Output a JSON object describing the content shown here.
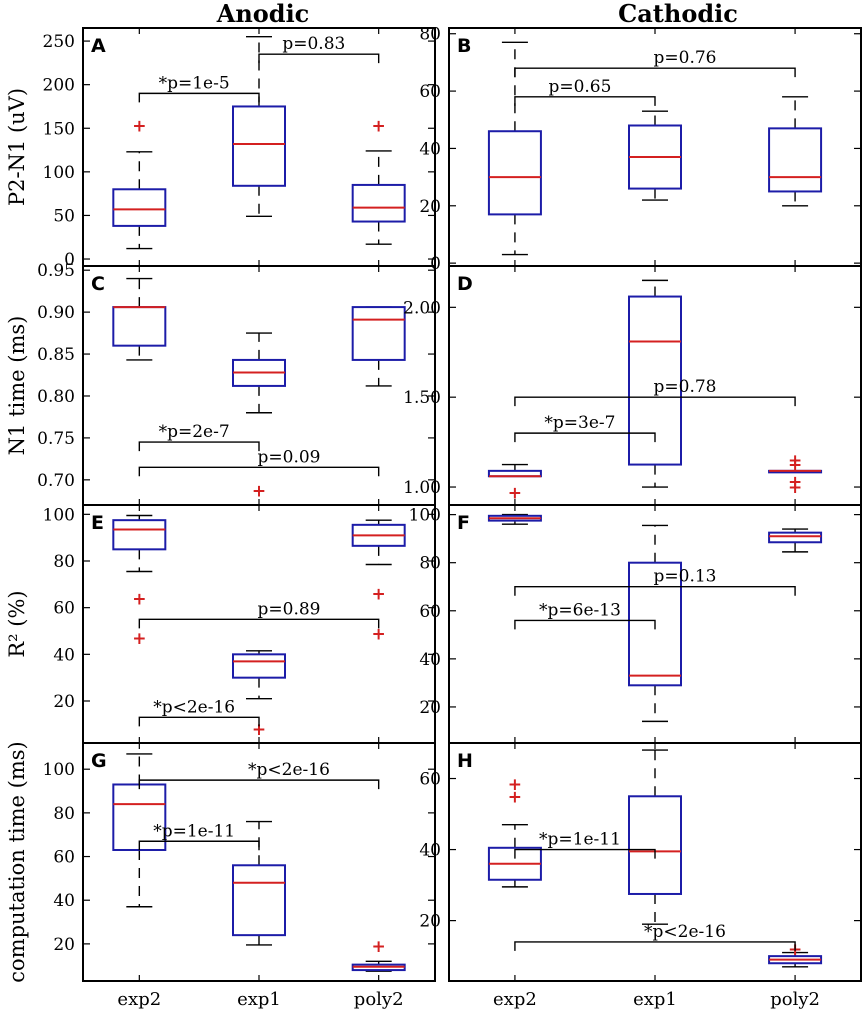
{
  "column_titles": [
    "Anodic",
    "Cathodic"
  ],
  "categories": [
    "exp2",
    "exp1",
    "poly2"
  ],
  "chart_data": [
    {
      "type": "box",
      "panel": "A",
      "column": "Anodic",
      "ylabel": "P2-N1 (uV)",
      "ylim": [
        -8,
        265
      ],
      "yticks": [
        0,
        50,
        100,
        150,
        200,
        250
      ],
      "boxes": [
        {
          "category": "exp2",
          "q1": 38,
          "median": 57,
          "q3": 80,
          "whisker_low": 12,
          "whisker_high": 123,
          "outliers": [
            153
          ]
        },
        {
          "category": "exp1",
          "q1": 84,
          "median": 132,
          "q3": 175,
          "whisker_low": 49,
          "whisker_high": 255,
          "outliers": []
        },
        {
          "category": "poly2",
          "q1": 43,
          "median": 59,
          "q3": 85,
          "whisker_low": 17,
          "whisker_high": 124,
          "outliers": [
            153
          ]
        }
      ],
      "annotations": [
        {
          "text": "*p=1e-5",
          "from": "exp2",
          "to": "exp1",
          "y": 190
        },
        {
          "text": "p=0.83",
          "from": "exp1",
          "to": "poly2",
          "y": 235
        }
      ]
    },
    {
      "type": "box",
      "panel": "B",
      "column": "Cathodic",
      "ylabel": "",
      "ylim": [
        -1,
        82
      ],
      "yticks": [
        0,
        20,
        40,
        60,
        80
      ],
      "boxes": [
        {
          "category": "exp2",
          "q1": 17,
          "median": 30,
          "q3": 46,
          "whisker_low": 3,
          "whisker_high": 77,
          "outliers": []
        },
        {
          "category": "exp1",
          "q1": 26,
          "median": 37,
          "q3": 48,
          "whisker_low": 22,
          "whisker_high": 53,
          "outliers": []
        },
        {
          "category": "poly2",
          "q1": 25,
          "median": 30,
          "q3": 47,
          "whisker_low": 20,
          "whisker_high": 58,
          "outliers": []
        }
      ],
      "annotations": [
        {
          "text": "p=0.65",
          "from": "exp2",
          "to": "exp1",
          "y": 58
        },
        {
          "text": "p=0.76",
          "from": "exp2",
          "to": "poly2",
          "y": 68
        }
      ]
    },
    {
      "type": "box",
      "panel": "C",
      "column": "Anodic",
      "ylabel": "N1 time (ms)",
      "ylim": [
        0.67,
        0.955
      ],
      "yticks": [
        "0.70",
        "0.75",
        "0.80",
        "0.85",
        "0.90",
        "0.95"
      ],
      "boxes": [
        {
          "category": "exp2",
          "q1": 0.86,
          "median": 0.906,
          "q3": 0.906,
          "whisker_low": 0.843,
          "whisker_high": 0.94,
          "outliers": []
        },
        {
          "category": "exp1",
          "q1": 0.812,
          "median": 0.828,
          "q3": 0.843,
          "whisker_low": 0.78,
          "whisker_high": 0.875,
          "outliers": [
            0.687
          ]
        },
        {
          "category": "poly2",
          "q1": 0.843,
          "median": 0.891,
          "q3": 0.906,
          "whisker_low": 0.812,
          "whisker_high": 0.906,
          "outliers": []
        }
      ],
      "annotations": [
        {
          "text": "*p=2e-7",
          "from": "exp2",
          "to": "exp1",
          "y": 0.745
        },
        {
          "text": "p=0.09",
          "from": "exp2",
          "to": "poly2",
          "y": 0.715
        }
      ]
    },
    {
      "type": "box",
      "panel": "D",
      "column": "Cathodic",
      "ylabel": "",
      "ylim": [
        0.9,
        2.23
      ],
      "yticks": [
        "1.00",
        "1.50",
        "2.00"
      ],
      "boxes": [
        {
          "category": "exp2",
          "q1": 1.06,
          "median": 1.06,
          "q3": 1.09,
          "whisker_low": 1.06,
          "whisker_high": 1.125,
          "outliers": [
            0.97
          ]
        },
        {
          "category": "exp1",
          "q1": 1.125,
          "median": 1.81,
          "q3": 2.06,
          "whisker_low": 1.0,
          "whisker_high": 2.15,
          "outliers": []
        },
        {
          "category": "poly2",
          "q1": 1.09,
          "median": 1.09,
          "q3": 1.09,
          "whisker_low": 1.09,
          "whisker_high": 1.09,
          "outliers": [
            1.15,
            1.125,
            1.03,
            1.0
          ]
        }
      ],
      "annotations": [
        {
          "text": "*p=3e-7",
          "from": "exp2",
          "to": "exp1",
          "y": 1.3
        },
        {
          "text": "p=0.78",
          "from": "exp2",
          "to": "poly2",
          "y": 1.5
        }
      ]
    },
    {
      "type": "box",
      "panel": "E",
      "column": "Anodic",
      "ylabel": "R² (%)",
      "ylim": [
        2,
        104
      ],
      "yticks": [
        20,
        40,
        60,
        80,
        100
      ],
      "boxes": [
        {
          "category": "exp2",
          "q1": 85,
          "median": 93.5,
          "q3": 97.5,
          "whisker_low": 75.5,
          "whisker_high": 99.5,
          "outliers": [
            64,
            47
          ]
        },
        {
          "category": "exp1",
          "q1": 30,
          "median": 37,
          "q3": 40,
          "whisker_low": 21,
          "whisker_high": 41.5,
          "outliers": [
            8
          ]
        },
        {
          "category": "poly2",
          "q1": 86.5,
          "median": 91,
          "q3": 95.5,
          "whisker_low": 78.5,
          "whisker_high": 97.5,
          "outliers": [
            66,
            49
          ]
        }
      ],
      "annotations": [
        {
          "text": "*p<2e-16",
          "from": "exp2",
          "to": "exp1",
          "y": 13
        },
        {
          "text": "p=0.89",
          "from": "exp2",
          "to": "poly2",
          "y": 55
        }
      ]
    },
    {
      "type": "box",
      "panel": "F",
      "column": "Cathodic",
      "ylabel": "",
      "ylim": [
        5,
        104
      ],
      "yticks": [
        20,
        40,
        60,
        80,
        100
      ],
      "boxes": [
        {
          "category": "exp2",
          "q1": 97.5,
          "median": 98.5,
          "q3": 99.5,
          "whisker_low": 96,
          "whisker_high": 100,
          "outliers": []
        },
        {
          "category": "exp1",
          "q1": 29,
          "median": 33,
          "q3": 80,
          "whisker_low": 14,
          "whisker_high": 95.5,
          "outliers": []
        },
        {
          "category": "poly2",
          "q1": 88.5,
          "median": 91,
          "q3": 92.5,
          "whisker_low": 84.5,
          "whisker_high": 94,
          "outliers": []
        }
      ],
      "annotations": [
        {
          "text": "*p=6e-13",
          "from": "exp2",
          "to": "exp1",
          "y": 56
        },
        {
          "text": "p=0.13",
          "from": "exp2",
          "to": "poly2",
          "y": 70
        }
      ]
    },
    {
      "type": "box",
      "panel": "G",
      "column": "Anodic",
      "ylabel": "computation time (ms)",
      "ylim": [
        3,
        112
      ],
      "yticks": [
        20,
        40,
        60,
        80,
        100
      ],
      "boxes": [
        {
          "category": "exp2",
          "q1": 63,
          "median": 84,
          "q3": 93,
          "whisker_low": 37,
          "whisker_high": 107,
          "outliers": []
        },
        {
          "category": "exp1",
          "q1": 24,
          "median": 48,
          "q3": 56,
          "whisker_low": 19.5,
          "whisker_high": 76,
          "outliers": []
        },
        {
          "category": "poly2",
          "q1": 8,
          "median": 9.5,
          "q3": 10.5,
          "whisker_low": 7.5,
          "whisker_high": 12,
          "outliers": [
            19
          ]
        }
      ],
      "annotations": [
        {
          "text": "*p=1e-11",
          "from": "exp2",
          "to": "exp1",
          "y": 67
        },
        {
          "text": "*p<2e-16",
          "from": "exp2",
          "to": "poly2",
          "y": 95
        }
      ]
    },
    {
      "type": "box",
      "panel": "H",
      "column": "Cathodic",
      "ylabel": "",
      "ylim": [
        3,
        70
      ],
      "yticks": [
        20,
        40,
        60
      ],
      "boxes": [
        {
          "category": "exp2",
          "q1": 31.5,
          "median": 36,
          "q3": 40.5,
          "whisker_low": 29.5,
          "whisker_high": 47,
          "outliers": [
            58.5,
            55
          ]
        },
        {
          "category": "exp1",
          "q1": 27.5,
          "median": 39.5,
          "q3": 55,
          "whisker_low": 19,
          "whisker_high": 68,
          "outliers": []
        },
        {
          "category": "poly2",
          "q1": 8,
          "median": 9,
          "q3": 10,
          "whisker_low": 7,
          "whisker_high": 11,
          "outliers": [
            12
          ]
        }
      ],
      "annotations": [
        {
          "text": "*p=1e-11",
          "from": "exp2",
          "to": "exp1",
          "y": 40
        },
        {
          "text": "*p<2e-16",
          "from": "exp2",
          "to": "poly2",
          "y": 14
        }
      ]
    }
  ]
}
